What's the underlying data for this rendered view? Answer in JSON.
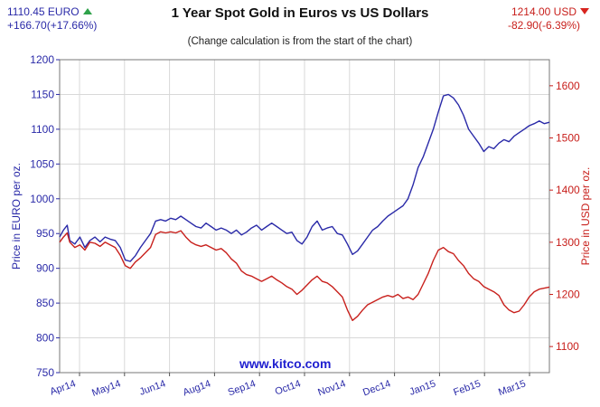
{
  "header": {
    "eur_price": "1110.45 EURO",
    "eur_change": "+166.70(+17.66%)",
    "usd_price": "1214.00 USD",
    "usd_change": "-82.90(-6.39%)"
  },
  "watermark": "www.kitco.com",
  "chart_data": {
    "type": "line",
    "title": "1 Year Spot Gold in Euros vs US Dollars",
    "subtitle": "(Change calculation is from the start of the chart)",
    "ylabel_left": "Price in EURO per oz.",
    "ylabel_right": "Price in USD per oz.",
    "ylim_left": [
      750,
      1200
    ],
    "ylim_right": [
      1050,
      1650
    ],
    "yticks_left": [
      750,
      800,
      850,
      900,
      950,
      1000,
      1050,
      1100,
      1150,
      1200
    ],
    "yticks_right": [
      1100,
      1200,
      1300,
      1400,
      1500,
      1600
    ],
    "xticks": [
      "Apr14",
      "May14",
      "Jun14",
      "Aug14",
      "Sep14",
      "Oct14",
      "Nov14",
      "Dec14",
      "Jan15",
      "Feb15",
      "Mar15"
    ],
    "grid": true,
    "colors": {
      "eur": "#2a2aa8",
      "usd": "#c8201c",
      "grid": "#d8d8d8"
    },
    "series": [
      {
        "name": "EURO",
        "axis": "left",
        "points": [
          [
            0,
            945
          ],
          [
            3,
            955
          ],
          [
            6,
            962
          ],
          [
            8,
            940
          ],
          [
            12,
            935
          ],
          [
            16,
            945
          ],
          [
            20,
            930
          ],
          [
            24,
            940
          ],
          [
            28,
            945
          ],
          [
            32,
            938
          ],
          [
            36,
            945
          ],
          [
            40,
            942
          ],
          [
            44,
            940
          ],
          [
            48,
            930
          ],
          [
            52,
            912
          ],
          [
            56,
            910
          ],
          [
            60,
            918
          ],
          [
            64,
            930
          ],
          [
            68,
            940
          ],
          [
            72,
            950
          ],
          [
            76,
            968
          ],
          [
            80,
            970
          ],
          [
            84,
            968
          ],
          [
            88,
            972
          ],
          [
            92,
            970
          ],
          [
            96,
            975
          ],
          [
            100,
            970
          ],
          [
            104,
            965
          ],
          [
            108,
            960
          ],
          [
            112,
            958
          ],
          [
            116,
            965
          ],
          [
            120,
            960
          ],
          [
            124,
            955
          ],
          [
            128,
            958
          ],
          [
            132,
            955
          ],
          [
            136,
            950
          ],
          [
            140,
            955
          ],
          [
            144,
            948
          ],
          [
            148,
            952
          ],
          [
            152,
            958
          ],
          [
            156,
            962
          ],
          [
            160,
            955
          ],
          [
            164,
            960
          ],
          [
            168,
            965
          ],
          [
            172,
            960
          ],
          [
            176,
            955
          ],
          [
            180,
            950
          ],
          [
            184,
            952
          ],
          [
            188,
            940
          ],
          [
            192,
            935
          ],
          [
            196,
            945
          ],
          [
            200,
            960
          ],
          [
            204,
            968
          ],
          [
            208,
            955
          ],
          [
            212,
            958
          ],
          [
            216,
            960
          ],
          [
            220,
            950
          ],
          [
            224,
            948
          ],
          [
            228,
            935
          ],
          [
            232,
            920
          ],
          [
            236,
            925
          ],
          [
            240,
            935
          ],
          [
            244,
            945
          ],
          [
            248,
            955
          ],
          [
            252,
            960
          ],
          [
            256,
            968
          ],
          [
            260,
            975
          ],
          [
            264,
            980
          ],
          [
            268,
            985
          ],
          [
            272,
            990
          ],
          [
            276,
            1000
          ],
          [
            280,
            1020
          ],
          [
            284,
            1045
          ],
          [
            288,
            1060
          ],
          [
            292,
            1080
          ],
          [
            296,
            1100
          ],
          [
            300,
            1125
          ],
          [
            304,
            1148
          ],
          [
            308,
            1150
          ],
          [
            312,
            1145
          ],
          [
            316,
            1135
          ],
          [
            320,
            1120
          ],
          [
            324,
            1100
          ],
          [
            328,
            1090
          ],
          [
            332,
            1080
          ],
          [
            336,
            1068
          ],
          [
            340,
            1075
          ],
          [
            344,
            1072
          ],
          [
            348,
            1080
          ],
          [
            352,
            1085
          ],
          [
            356,
            1082
          ],
          [
            360,
            1090
          ],
          [
            364,
            1095
          ],
          [
            368,
            1100
          ],
          [
            372,
            1105
          ],
          [
            376,
            1108
          ],
          [
            380,
            1112
          ],
          [
            384,
            1108
          ],
          [
            388,
            1110
          ]
        ]
      },
      {
        "name": "USD",
        "axis": "right",
        "points": [
          [
            0,
            1300
          ],
          [
            3,
            1310
          ],
          [
            6,
            1318
          ],
          [
            8,
            1300
          ],
          [
            12,
            1290
          ],
          [
            16,
            1295
          ],
          [
            20,
            1285
          ],
          [
            24,
            1300
          ],
          [
            28,
            1298
          ],
          [
            32,
            1292
          ],
          [
            36,
            1300
          ],
          [
            40,
            1295
          ],
          [
            44,
            1290
          ],
          [
            48,
            1275
          ],
          [
            52,
            1255
          ],
          [
            56,
            1250
          ],
          [
            60,
            1262
          ],
          [
            64,
            1270
          ],
          [
            68,
            1280
          ],
          [
            72,
            1290
          ],
          [
            76,
            1315
          ],
          [
            80,
            1320
          ],
          [
            84,
            1318
          ],
          [
            88,
            1320
          ],
          [
            92,
            1318
          ],
          [
            96,
            1322
          ],
          [
            100,
            1310
          ],
          [
            104,
            1300
          ],
          [
            108,
            1295
          ],
          [
            112,
            1292
          ],
          [
            116,
            1295
          ],
          [
            120,
            1290
          ],
          [
            124,
            1285
          ],
          [
            128,
            1288
          ],
          [
            132,
            1280
          ],
          [
            136,
            1268
          ],
          [
            140,
            1260
          ],
          [
            144,
            1245
          ],
          [
            148,
            1238
          ],
          [
            152,
            1235
          ],
          [
            156,
            1230
          ],
          [
            160,
            1225
          ],
          [
            164,
            1230
          ],
          [
            168,
            1235
          ],
          [
            172,
            1228
          ],
          [
            176,
            1222
          ],
          [
            180,
            1215
          ],
          [
            184,
            1210
          ],
          [
            188,
            1200
          ],
          [
            192,
            1208
          ],
          [
            196,
            1218
          ],
          [
            200,
            1228
          ],
          [
            204,
            1235
          ],
          [
            208,
            1225
          ],
          [
            212,
            1222
          ],
          [
            216,
            1215
          ],
          [
            220,
            1205
          ],
          [
            224,
            1195
          ],
          [
            228,
            1170
          ],
          [
            232,
            1150
          ],
          [
            236,
            1158
          ],
          [
            240,
            1170
          ],
          [
            244,
            1180
          ],
          [
            248,
            1185
          ],
          [
            252,
            1190
          ],
          [
            256,
            1195
          ],
          [
            260,
            1198
          ],
          [
            264,
            1195
          ],
          [
            268,
            1200
          ],
          [
            272,
            1192
          ],
          [
            276,
            1195
          ],
          [
            280,
            1190
          ],
          [
            284,
            1200
          ],
          [
            288,
            1220
          ],
          [
            292,
            1240
          ],
          [
            296,
            1265
          ],
          [
            300,
            1285
          ],
          [
            304,
            1290
          ],
          [
            308,
            1282
          ],
          [
            312,
            1278
          ],
          [
            316,
            1265
          ],
          [
            320,
            1255
          ],
          [
            324,
            1240
          ],
          [
            328,
            1230
          ],
          [
            332,
            1225
          ],
          [
            336,
            1215
          ],
          [
            340,
            1210
          ],
          [
            344,
            1205
          ],
          [
            348,
            1198
          ],
          [
            352,
            1180
          ],
          [
            356,
            1170
          ],
          [
            360,
            1165
          ],
          [
            364,
            1168
          ],
          [
            368,
            1180
          ],
          [
            372,
            1195
          ],
          [
            376,
            1205
          ],
          [
            380,
            1210
          ],
          [
            384,
            1212
          ],
          [
            388,
            1214
          ]
        ]
      }
    ]
  }
}
